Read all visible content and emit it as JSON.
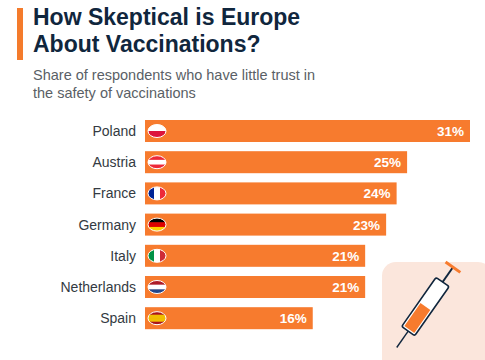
{
  "chart_data": {
    "type": "bar",
    "orientation": "horizontal",
    "title": "How Skeptical is Europe About Vaccinations?",
    "subtitle": "Share of respondents who have little trust in the safety of vaccinations",
    "categories": [
      "Poland",
      "Austria",
      "France",
      "Germany",
      "Italy",
      "Netherlands",
      "Spain"
    ],
    "values": [
      31,
      25,
      24,
      23,
      21,
      21,
      16
    ],
    "value_labels": [
      "31%",
      "25%",
      "24%",
      "23%",
      "21%",
      "21%",
      "16%"
    ],
    "color": "#f77b2e",
    "xlim": [
      0,
      31
    ],
    "data_labels": true,
    "tick_labels": "y",
    "grid": false
  }
}
